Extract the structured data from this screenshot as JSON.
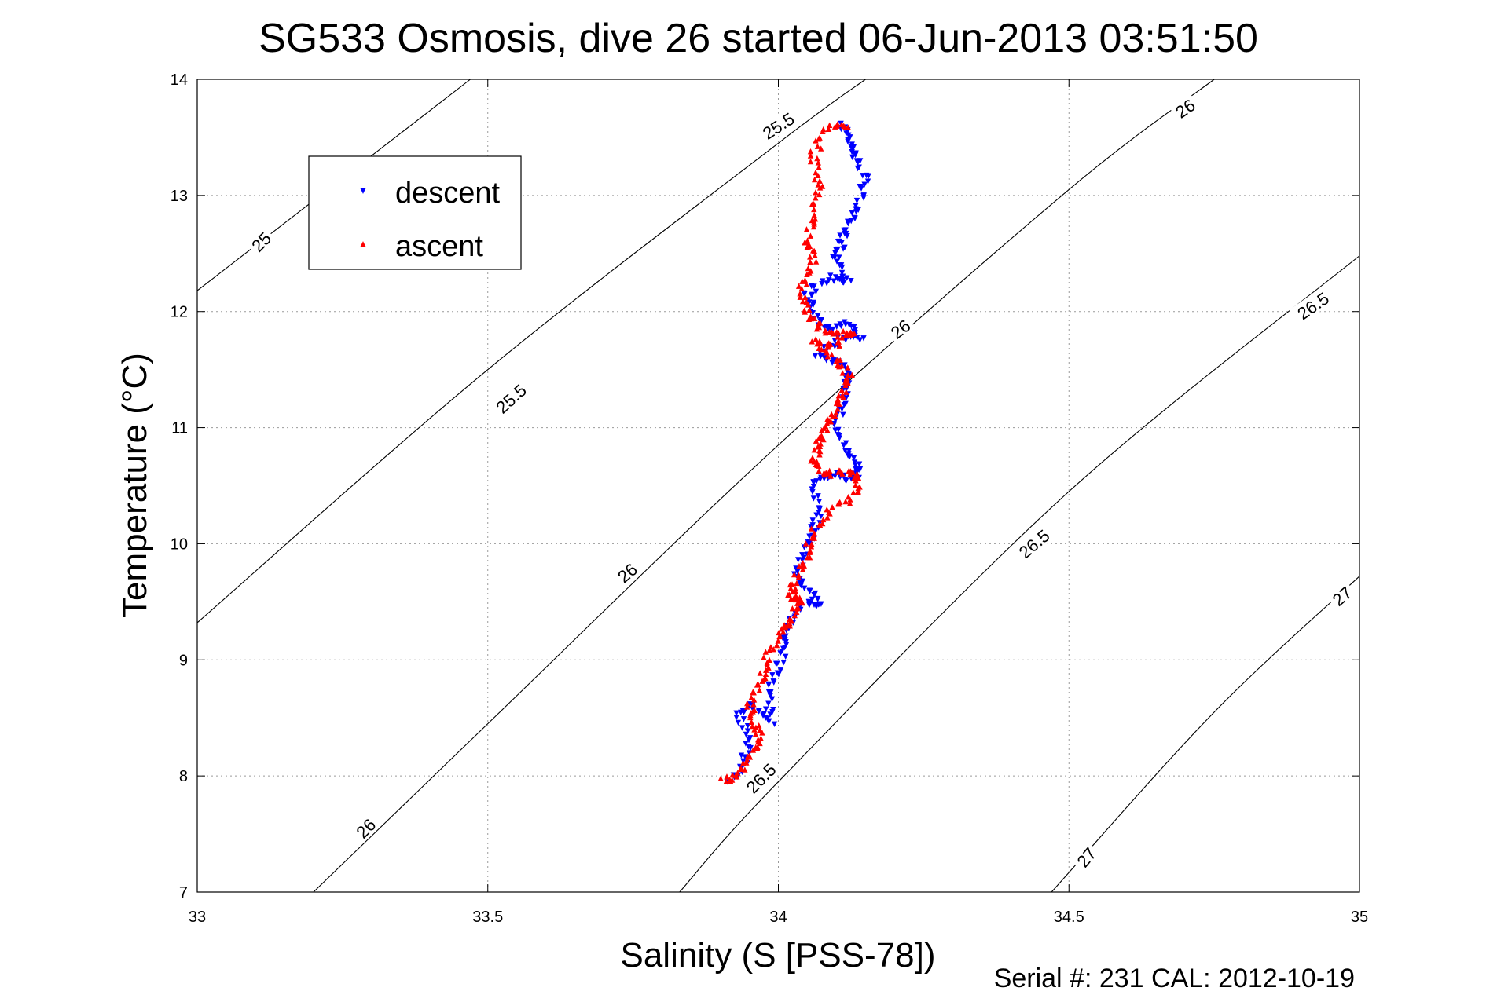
{
  "chart_data": {
    "type": "scatter",
    "title": "SG533 Osmosis, dive 26 started 06-Jun-2013 03:51:50",
    "xlabel": "Salinity (S [PSS-78])",
    "ylabel": "Temperature (°C)",
    "xlim": [
      33,
      35
    ],
    "ylim": [
      7,
      14
    ],
    "x_ticks": [
      "33",
      "33.5",
      "34",
      "34.5",
      "35"
    ],
    "y_ticks": [
      "7",
      "8",
      "9",
      "10",
      "11",
      "12",
      "13",
      "14"
    ],
    "grid": true,
    "legend": {
      "placement": "top-left"
    },
    "footer": "Serial #: 231  CAL: 2012-10-19",
    "contours": [
      {
        "sigma": "25",
        "points": [
          [
            33.0,
            12.18
          ],
          [
            33.47,
            14.0
          ]
        ]
      },
      {
        "sigma": "25.5",
        "points": [
          [
            33.0,
            9.32
          ],
          [
            33.5,
            11.5
          ],
          [
            34.0,
            13.45
          ],
          [
            34.15,
            14.0
          ]
        ]
      },
      {
        "sigma": "26",
        "points": [
          [
            33.2,
            7.0
          ],
          [
            33.5,
            8.45
          ],
          [
            34.0,
            10.85
          ],
          [
            34.5,
            13.05
          ],
          [
            34.75,
            14.0
          ]
        ]
      },
      {
        "sigma": "26.5",
        "points": [
          [
            33.83,
            7.0
          ],
          [
            34.0,
            7.95
          ],
          [
            34.5,
            10.45
          ],
          [
            35.0,
            12.48
          ]
        ]
      },
      {
        "sigma": "27",
        "points": [
          [
            34.47,
            7.0
          ],
          [
            34.75,
            8.55
          ],
          [
            35.0,
            9.72
          ]
        ]
      }
    ],
    "contour_labels": [
      {
        "text": "25",
        "x": 33.11,
        "y": 12.6,
        "angle": -45
      },
      {
        "text": "25.5",
        "x": 33.54,
        "y": 11.25,
        "angle": -42
      },
      {
        "text": "25.5",
        "x": 34.0,
        "y": 13.6,
        "angle": -33
      },
      {
        "text": "26",
        "x": 33.29,
        "y": 7.55,
        "angle": -45
      },
      {
        "text": "26",
        "x": 33.74,
        "y": 9.75,
        "angle": -40
      },
      {
        "text": "26",
        "x": 34.21,
        "y": 11.85,
        "angle": -38
      },
      {
        "text": "26",
        "x": 34.7,
        "y": 13.75,
        "angle": -35
      },
      {
        "text": "26.5",
        "x": 33.97,
        "y": 7.98,
        "angle": -45
      },
      {
        "text": "26.5",
        "x": 34.44,
        "y": 10.0,
        "angle": -40
      },
      {
        "text": "26.5",
        "x": 34.92,
        "y": 12.05,
        "angle": -35
      },
      {
        "text": "27",
        "x": 34.53,
        "y": 7.3,
        "angle": -50
      },
      {
        "text": "27",
        "x": 34.97,
        "y": 9.55,
        "angle": -40
      }
    ],
    "series": [
      {
        "name": "descent",
        "marker": "triangle-down",
        "color": "#0000ff",
        "path": [
          [
            33.92,
            7.95
          ],
          [
            33.94,
            8.1
          ],
          [
            33.95,
            8.3
          ],
          [
            33.93,
            8.55
          ],
          [
            33.96,
            8.6
          ],
          [
            33.99,
            8.45
          ],
          [
            33.98,
            8.7
          ],
          [
            34.0,
            8.9
          ],
          [
            34.01,
            9.1
          ],
          [
            34.02,
            9.3
          ],
          [
            34.04,
            9.5
          ],
          [
            34.07,
            9.48
          ],
          [
            34.05,
            9.6
          ],
          [
            34.03,
            9.75
          ],
          [
            34.05,
            9.95
          ],
          [
            34.06,
            10.1
          ],
          [
            34.07,
            10.3
          ],
          [
            34.06,
            10.55
          ],
          [
            34.1,
            10.6
          ],
          [
            34.13,
            10.55
          ],
          [
            34.14,
            10.65
          ],
          [
            34.12,
            10.8
          ],
          [
            34.1,
            11.0
          ],
          [
            34.11,
            11.2
          ],
          [
            34.12,
            11.4
          ],
          [
            34.11,
            11.55
          ],
          [
            34.07,
            11.62
          ],
          [
            34.1,
            11.75
          ],
          [
            34.14,
            11.78
          ],
          [
            34.12,
            11.9
          ],
          [
            34.08,
            11.85
          ],
          [
            34.06,
            12.0
          ],
          [
            34.05,
            12.15
          ],
          [
            34.09,
            12.3
          ],
          [
            34.12,
            12.25
          ],
          [
            34.1,
            12.45
          ],
          [
            34.11,
            12.6
          ],
          [
            34.12,
            12.75
          ],
          [
            34.14,
            12.95
          ],
          [
            34.15,
            13.15
          ],
          [
            34.13,
            13.35
          ],
          [
            34.12,
            13.5
          ],
          [
            34.11,
            13.62
          ]
        ]
      },
      {
        "name": "ascent",
        "marker": "triangle-up",
        "color": "#ff0000",
        "path": [
          [
            34.12,
            13.6
          ],
          [
            34.08,
            13.58
          ],
          [
            34.06,
            13.35
          ],
          [
            34.07,
            13.1
          ],
          [
            34.06,
            12.85
          ],
          [
            34.05,
            12.6
          ],
          [
            34.06,
            12.45
          ],
          [
            34.04,
            12.2
          ],
          [
            34.05,
            12.0
          ],
          [
            34.07,
            11.85
          ],
          [
            34.1,
            11.8
          ],
          [
            34.13,
            11.82
          ],
          [
            34.09,
            11.7
          ],
          [
            34.06,
            11.75
          ],
          [
            34.1,
            11.6
          ],
          [
            34.12,
            11.45
          ],
          [
            34.11,
            11.3
          ],
          [
            34.1,
            11.15
          ],
          [
            34.08,
            11.0
          ],
          [
            34.07,
            10.85
          ],
          [
            34.06,
            10.7
          ],
          [
            34.08,
            10.6
          ],
          [
            34.12,
            10.62
          ],
          [
            34.14,
            10.58
          ],
          [
            34.13,
            10.4
          ],
          [
            34.09,
            10.3
          ],
          [
            34.06,
            10.1
          ],
          [
            34.05,
            9.9
          ],
          [
            34.03,
            9.7
          ],
          [
            34.02,
            9.55
          ],
          [
            34.04,
            9.52
          ],
          [
            34.02,
            9.35
          ],
          [
            34.0,
            9.2
          ],
          [
            33.98,
            9.0
          ],
          [
            33.97,
            8.8
          ],
          [
            33.95,
            8.65
          ],
          [
            33.96,
            8.45
          ],
          [
            33.97,
            8.3
          ],
          [
            33.95,
            8.15
          ],
          [
            33.93,
            8.0
          ],
          [
            33.9,
            7.95
          ]
        ]
      }
    ]
  }
}
